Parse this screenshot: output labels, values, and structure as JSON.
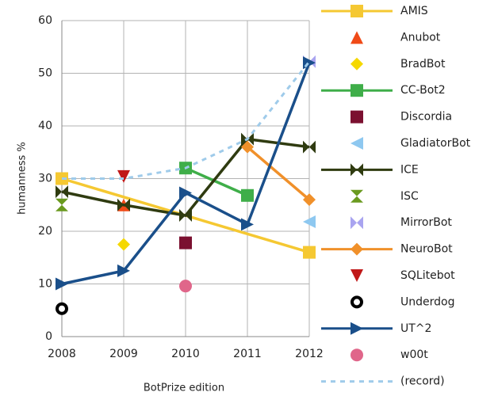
{
  "chart_data": {
    "type": "line",
    "x_label": "BotPrize edition",
    "y_label": "humanness %",
    "xlim": [
      2008,
      2012
    ],
    "xticks": [
      2008,
      2009,
      2010,
      2011,
      2012
    ],
    "ylim": [
      0,
      60
    ],
    "yticks": [
      0,
      10,
      20,
      30,
      40,
      50,
      60
    ],
    "grid": true,
    "series": [
      {
        "name": "AMIS",
        "color": "#f5c832",
        "marker": "square",
        "line": true,
        "x": [
          2008,
          2012
        ],
        "values": [
          30,
          16
        ]
      },
      {
        "name": "Anubot",
        "color": "#f04a17",
        "marker": "triangle-up",
        "line": false,
        "x": [
          2009
        ],
        "values": [
          25
        ]
      },
      {
        "name": "BradBot",
        "color": "#f5d800",
        "marker": "diamond",
        "line": false,
        "x": [
          2009
        ],
        "values": [
          17.5
        ]
      },
      {
        "name": "CC-Bot2",
        "color": "#3fae49",
        "marker": "square",
        "line": true,
        "x": [
          2010,
          2011
        ],
        "values": [
          32,
          26.8
        ]
      },
      {
        "name": "Discordia",
        "color": "#7b1030",
        "marker": "square",
        "line": false,
        "x": [
          2010
        ],
        "values": [
          17.8
        ]
      },
      {
        "name": "GladiatorBot",
        "color": "#8ec8f0",
        "marker": "triangle-left",
        "line": false,
        "x": [
          2012
        ],
        "values": [
          21.8
        ]
      },
      {
        "name": "ICE",
        "color": "#2f3b10",
        "marker": "bowtie",
        "line": true,
        "x": [
          2008,
          2009,
          2010,
          2011,
          2012
        ],
        "values": [
          27.5,
          25,
          23,
          37.5,
          36
        ]
      },
      {
        "name": "ISC",
        "color": "#6a9a1f",
        "marker": "hourglass",
        "line": false,
        "x": [
          2008
        ],
        "values": [
          25
        ]
      },
      {
        "name": "MirrorBot",
        "color": "#a9a4f0",
        "marker": "bowtie",
        "line": false,
        "x": [
          2012
        ],
        "values": [
          52.2
        ]
      },
      {
        "name": "NeuroBot",
        "color": "#f0902a",
        "marker": "diamond",
        "line": true,
        "x": [
          2011,
          2012
        ],
        "values": [
          36,
          26
        ]
      },
      {
        "name": "SQLitebot",
        "color": "#c01818",
        "marker": "triangle-down",
        "line": false,
        "x": [
          2009
        ],
        "values": [
          30.4
        ]
      },
      {
        "name": "Underdog",
        "color": "#000000",
        "marker": "ring",
        "line": false,
        "x": [
          2008
        ],
        "values": [
          5.3
        ]
      },
      {
        "name": "UT^2",
        "color": "#1a4f8a",
        "marker": "triangle-right",
        "line": true,
        "x": [
          2008,
          2009,
          2010,
          2011,
          2012
        ],
        "values": [
          10,
          12.5,
          27.3,
          21.3,
          52
        ]
      },
      {
        "name": "w00t",
        "color": "#e0668a",
        "marker": "circle",
        "line": false,
        "x": [
          2010
        ],
        "values": [
          9.6
        ]
      },
      {
        "name": "(record)",
        "color": "#9fcbea",
        "marker": "none",
        "line": true,
        "dash": true,
        "x": [
          2008,
          2009,
          2010,
          2011,
          2012
        ],
        "values": [
          30,
          30,
          32,
          37.5,
          52.2
        ]
      }
    ]
  }
}
